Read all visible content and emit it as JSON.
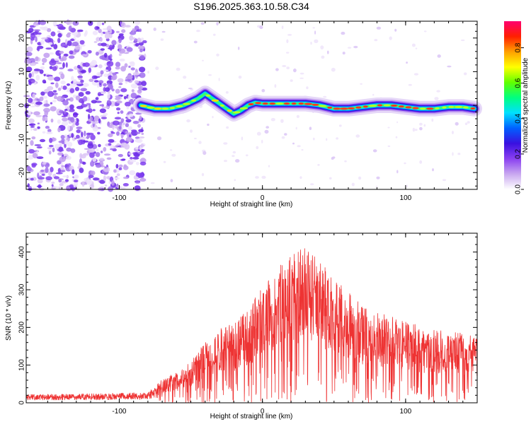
{
  "figure": {
    "title": "S196.2025.363.10.58.C34"
  },
  "chart_data": [
    {
      "type": "heatmap",
      "name": "spectrogram",
      "xlabel": "Height of straight line (km)",
      "ylabel": "Frequency (Hz)",
      "xlim": [
        -165,
        150
      ],
      "ylim": [
        -25,
        25
      ],
      "xticks": [
        -100,
        0,
        100
      ],
      "yticks": [
        -20,
        -10,
        0,
        10,
        20
      ],
      "colorbar": {
        "label": "Normalized spectral amplitude",
        "range": [
          0,
          0.95
        ],
        "ticks": [
          "0.0",
          "0.2",
          "0.4",
          "0.6",
          "0.8"
        ],
        "colors": [
          "#ffffff",
          "#c9a8f0",
          "#8a40f0",
          "#3a10e0",
          "#0060ff",
          "#00e0ff",
          "#00ff80",
          "#60ff00",
          "#ffff00",
          "#ffa000",
          "#ff2000",
          "#ff0070"
        ]
      },
      "ridge": {
        "x": [
          -85,
          -75,
          -65,
          -55,
          -45,
          -40,
          -35,
          -30,
          -25,
          -20,
          -15,
          -10,
          -5,
          0,
          10,
          20,
          30,
          40,
          50,
          60,
          70,
          80,
          90,
          100,
          110,
          120,
          130,
          140,
          148
        ],
        "y": [
          0,
          -1,
          -1,
          0,
          2,
          3.5,
          2,
          0.5,
          -1,
          -2.5,
          -1.5,
          0,
          0.8,
          0.5,
          0.5,
          0.5,
          0.5,
          0,
          -1,
          -1,
          -0.5,
          0,
          0,
          -0.5,
          -1,
          -1,
          -0.5,
          -0.5,
          -1
        ]
      }
    },
    {
      "type": "line",
      "name": "snr",
      "xlabel": "Height of straight line (km)",
      "ylabel": "SNR (10 * v/v)",
      "xlim": [
        -165,
        150
      ],
      "ylim": [
        0,
        450
      ],
      "xticks": [
        -100,
        0,
        100
      ],
      "yticks": [
        0,
        100,
        200,
        300,
        400
      ],
      "color": "#ee3333",
      "envelope": {
        "x": [
          -165,
          -120,
          -80,
          -70,
          -60,
          -50,
          -40,
          -30,
          -20,
          -10,
          0,
          10,
          20,
          30,
          40,
          50,
          60,
          70,
          80,
          90,
          100,
          110,
          120,
          130,
          140,
          150
        ],
        "y": [
          20,
          22,
          25,
          55,
          70,
          95,
          140,
          170,
          185,
          220,
          270,
          310,
          340,
          360,
          330,
          290,
          255,
          225,
          210,
          200,
          190,
          180,
          170,
          165,
          160,
          150
        ]
      }
    }
  ]
}
